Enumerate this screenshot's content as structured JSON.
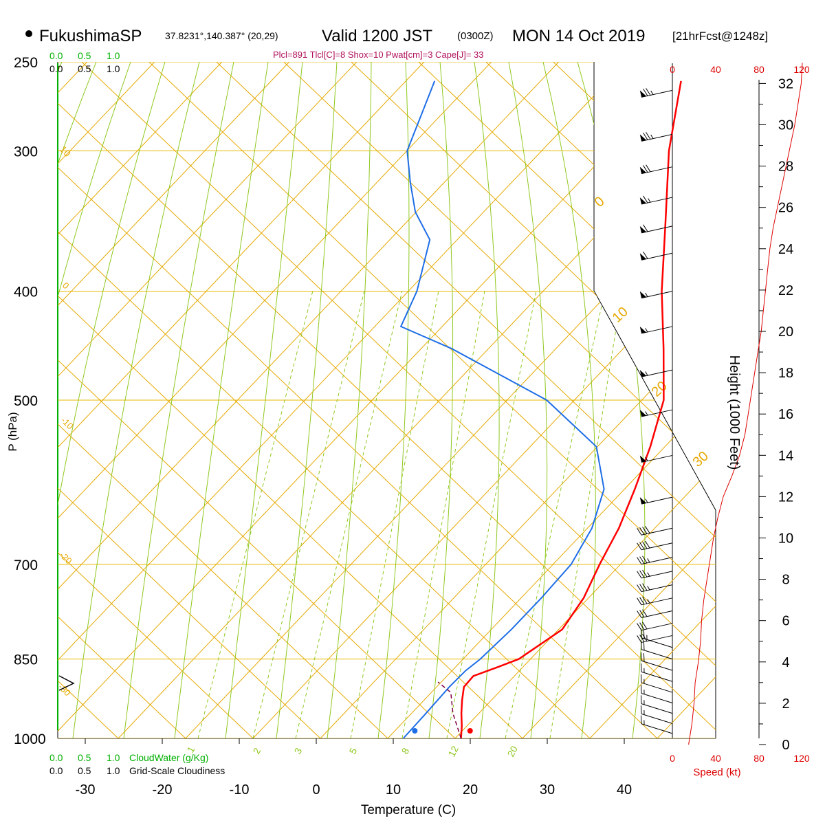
{
  "header": {
    "station": "FukushimaSP",
    "coords": "37.8231°,140.387° (20,29)",
    "valid": "Valid 1200 JST",
    "utc": "(0300Z)",
    "date": "MON 14 Oct 2019",
    "forecast": "[21hrFcst@1248z]",
    "indices": "Plcl=891 Tlcl[C]=8 Shox=10 Pwat[cm]=3 Cape[J]= 33"
  },
  "colors": {
    "isobar": "#e6b800",
    "dry_adiabat": "#e6a800",
    "moist_adiabat": "#8fc81e",
    "mixing_ratio": "#8fc81e",
    "temperature": "#ff0000",
    "dewpoint": "#1e6ee6",
    "parcel": "#800040",
    "cloud_axis": "#00b000",
    "hodo": "#dd0000"
  },
  "chart_data": {
    "type": "skew-t",
    "xlabel": "Temperature (C)",
    "ylabel": "P (hPa)",
    "x_ticks": [
      "-30",
      "-20",
      "-10",
      "0",
      "10",
      "20",
      "30",
      "40"
    ],
    "p_ticks": [
      "250",
      "300",
      "400",
      "500",
      "700",
      "850",
      "1000"
    ],
    "p_tick_values": [
      250,
      300,
      400,
      500,
      700,
      850,
      1000
    ],
    "temperature": [
      {
        "p": 1000,
        "t": 18.8
      },
      {
        "p": 975,
        "t": 17.3
      },
      {
        "p": 950,
        "t": 15.6
      },
      {
        "p": 925,
        "t": 14.0
      },
      {
        "p": 900,
        "t": 12.5
      },
      {
        "p": 880,
        "t": 12.3
      },
      {
        "p": 865,
        "t": 14.2
      },
      {
        "p": 850,
        "t": 16.0
      },
      {
        "p": 800,
        "t": 17.8
      },
      {
        "p": 750,
        "t": 16.5
      },
      {
        "p": 700,
        "t": 14.2
      },
      {
        "p": 650,
        "t": 12.0
      },
      {
        "p": 600,
        "t": 9.0
      },
      {
        "p": 550,
        "t": 5.5
      },
      {
        "p": 500,
        "t": 1.2
      },
      {
        "p": 450,
        "t": -5.5
      },
      {
        "p": 400,
        "t": -13.2
      },
      {
        "p": 350,
        "t": -21.2
      },
      {
        "p": 300,
        "t": -30.5
      },
      {
        "p": 260,
        "t": -38.0
      }
    ],
    "dewpoint": [
      {
        "p": 1000,
        "t": 11.3
      },
      {
        "p": 950,
        "t": 11.0
      },
      {
        "p": 900,
        "t": 10.6
      },
      {
        "p": 870,
        "t": 10.6
      },
      {
        "p": 850,
        "t": 11.0
      },
      {
        "p": 800,
        "t": 11.2
      },
      {
        "p": 750,
        "t": 11.0
      },
      {
        "p": 700,
        "t": 10.5
      },
      {
        "p": 650,
        "t": 8.5
      },
      {
        "p": 600,
        "t": 5.0
      },
      {
        "p": 550,
        "t": -1.5
      },
      {
        "p": 500,
        "t": -14.0
      },
      {
        "p": 450,
        "t": -33.0
      },
      {
        "p": 430,
        "t": -42.5
      },
      {
        "p": 400,
        "t": -45.0
      },
      {
        "p": 360,
        "t": -50.0
      },
      {
        "p": 340,
        "t": -55.5
      },
      {
        "p": 320,
        "t": -60.0
      },
      {
        "p": 300,
        "t": -64.5
      },
      {
        "p": 260,
        "t": -70.0
      }
    ],
    "parcel": [
      {
        "p": 1000,
        "t": 18.8
      },
      {
        "p": 950,
        "t": 14.5
      },
      {
        "p": 910,
        "t": 11.5
      },
      {
        "p": 891,
        "t": 8.5
      }
    ],
    "surface_temp": {
      "p": 1000,
      "t": 19.8
    },
    "surface_dewpoint": {
      "p": 1000,
      "t": 12.8
    },
    "dry_adiabat_labels": [
      "10",
      "0",
      "-10",
      "-20",
      "-30",
      "0",
      "10",
      "20",
      "30"
    ],
    "mixing_ratio_labels": [
      "1",
      "2",
      "3",
      "5",
      "8",
      "12",
      "20"
    ],
    "height_axis": {
      "title": "Height (1000 Feet)",
      "ticks": [
        "0",
        "2",
        "4",
        "6",
        "8",
        "10",
        "12",
        "14",
        "16",
        "18",
        "20",
        "22",
        "24",
        "26",
        "28",
        "30",
        "32"
      ]
    },
    "hodo_axis": {
      "ticks": [
        "0",
        "40",
        "80",
        "120"
      ],
      "label": "Speed (kt)"
    },
    "cloud_axis": {
      "ticks": [
        "0.0",
        "0.5",
        "1.0"
      ],
      "water_label": "CloudWater (g/Kg)",
      "cover_label": "Grid-Scale Cloudiness"
    },
    "wind_speed_profile": [
      {
        "h": 0,
        "s": 15
      },
      {
        "h": 1,
        "s": 18
      },
      {
        "h": 2,
        "s": 20
      },
      {
        "h": 3,
        "s": 21
      },
      {
        "h": 4,
        "s": 24
      },
      {
        "h": 5,
        "s": 26
      },
      {
        "h": 6,
        "s": 27
      },
      {
        "h": 7,
        "s": 29
      },
      {
        "h": 8,
        "s": 32
      },
      {
        "h": 9,
        "s": 35
      },
      {
        "h": 10,
        "s": 38
      },
      {
        "h": 11,
        "s": 42
      },
      {
        "h": 12,
        "s": 47
      },
      {
        "h": 13,
        "s": 55
      },
      {
        "h": 14,
        "s": 62
      },
      {
        "h": 15,
        "s": 67
      },
      {
        "h": 16,
        "s": 70
      },
      {
        "h": 17,
        "s": 73
      },
      {
        "h": 18,
        "s": 76
      },
      {
        "h": 19,
        "s": 79
      },
      {
        "h": 20,
        "s": 82
      },
      {
        "h": 21,
        "s": 84
      },
      {
        "h": 22,
        "s": 86
      },
      {
        "h": 23,
        "s": 88
      },
      {
        "h": 24,
        "s": 90
      },
      {
        "h": 25,
        "s": 93
      },
      {
        "h": 26,
        "s": 97
      },
      {
        "h": 27,
        "s": 101
      },
      {
        "h": 28,
        "s": 105
      },
      {
        "h": 29,
        "s": 109
      },
      {
        "h": 30,
        "s": 113
      },
      {
        "h": 31,
        "s": 116
      },
      {
        "h": 32,
        "s": 119
      },
      {
        "h": 33,
        "s": 120
      }
    ],
    "wind_barbs": [
      {
        "p": 265,
        "speed": 75,
        "dir": 250
      },
      {
        "p": 290,
        "speed": 75,
        "dir": 250
      },
      {
        "p": 310,
        "speed": 70,
        "dir": 250
      },
      {
        "p": 330,
        "speed": 65,
        "dir": 250
      },
      {
        "p": 350,
        "speed": 60,
        "dir": 250
      },
      {
        "p": 370,
        "speed": 60,
        "dir": 250
      },
      {
        "p": 400,
        "speed": 55,
        "dir": 255
      },
      {
        "p": 430,
        "speed": 55,
        "dir": 255
      },
      {
        "p": 470,
        "speed": 55,
        "dir": 255
      },
      {
        "p": 510,
        "speed": 55,
        "dir": 255
      },
      {
        "p": 560,
        "speed": 55,
        "dir": 250
      },
      {
        "p": 610,
        "speed": 55,
        "dir": 250
      },
      {
        "p": 650,
        "speed": 40,
        "dir": 245
      },
      {
        "p": 670,
        "speed": 40,
        "dir": 245
      },
      {
        "p": 690,
        "speed": 35,
        "dir": 245
      },
      {
        "p": 710,
        "speed": 35,
        "dir": 245
      },
      {
        "p": 730,
        "speed": 35,
        "dir": 240
      },
      {
        "p": 750,
        "speed": 35,
        "dir": 240
      },
      {
        "p": 770,
        "speed": 30,
        "dir": 235
      },
      {
        "p": 790,
        "speed": 30,
        "dir": 235
      },
      {
        "p": 810,
        "speed": 30,
        "dir": 230
      },
      {
        "p": 830,
        "speed": 25,
        "dir": 225
      },
      {
        "p": 850,
        "speed": 20,
        "dir": 215
      },
      {
        "p": 870,
        "speed": 20,
        "dir": 210
      },
      {
        "p": 890,
        "speed": 15,
        "dir": 200
      },
      {
        "p": 910,
        "speed": 15,
        "dir": 190
      },
      {
        "p": 930,
        "speed": 15,
        "dir": 180
      },
      {
        "p": 950,
        "speed": 15,
        "dir": 175
      },
      {
        "p": 970,
        "speed": 15,
        "dir": 170
      },
      {
        "p": 990,
        "speed": 15,
        "dir": 165
      }
    ]
  }
}
